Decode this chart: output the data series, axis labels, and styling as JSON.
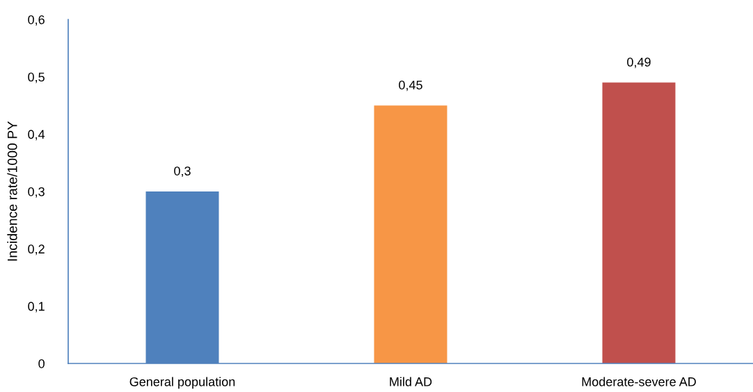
{
  "chart_data": {
    "type": "bar",
    "ylabel": "Incidence rate/1000 PY",
    "categories": [
      "General population",
      "Mild AD",
      "Moderate-severe AD"
    ],
    "values": [
      0.3,
      0.45,
      0.49
    ],
    "colors": [
      "#4f81bd",
      "#f79646",
      "#c0504d"
    ],
    "value_labels": [
      "0,3",
      "0,45",
      "0,49"
    ],
    "ylim": [
      0,
      0.6
    ],
    "yticks": [
      {
        "value": 0,
        "label": "0"
      },
      {
        "value": 0.1,
        "label": "0,1"
      },
      {
        "value": 0.2,
        "label": "0,2"
      },
      {
        "value": 0.3,
        "label": "0,3"
      },
      {
        "value": 0.4,
        "label": "0,4"
      },
      {
        "value": 0.5,
        "label": "0,5"
      },
      {
        "value": 0.6,
        "label": "0,6"
      }
    ],
    "grid": false,
    "legend": false
  }
}
